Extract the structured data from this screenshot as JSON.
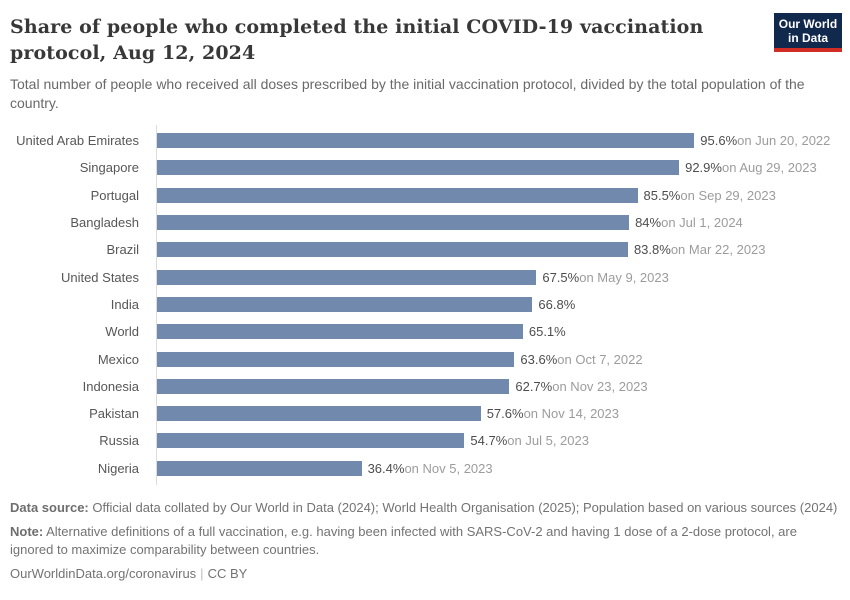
{
  "header": {
    "title": "Share of people who completed the initial COVID-19 vaccination protocol, Aug 12, 2024",
    "subtitle": "Total number of people who received all doses prescribed by the initial vaccination protocol, divided by the total population of the country.",
    "logo": {
      "line1": "Our World",
      "line2": "in Data"
    }
  },
  "chart_data": {
    "type": "bar",
    "orientation": "horizontal",
    "title": "Share of people who completed the initial COVID-19 vaccination protocol, Aug 12, 2024",
    "xlabel": "",
    "ylabel": "",
    "xlim": [
      0,
      100
    ],
    "grid": false,
    "legend": false,
    "bar_color": "#7189ad",
    "categories": [
      "United Arab Emirates",
      "Singapore",
      "Portugal",
      "Bangladesh",
      "Brazil",
      "United States",
      "India",
      "World",
      "Mexico",
      "Indonesia",
      "Pakistan",
      "Russia",
      "Nigeria"
    ],
    "values": [
      95.6,
      92.9,
      85.5,
      84,
      83.8,
      67.5,
      66.8,
      65.1,
      63.6,
      62.7,
      57.6,
      54.7,
      36.4
    ],
    "rows": [
      {
        "label": "United Arab Emirates",
        "value": 95.6,
        "value_label": "95.6%",
        "date_label": "on Jun 20, 2022"
      },
      {
        "label": "Singapore",
        "value": 92.9,
        "value_label": "92.9%",
        "date_label": "on Aug 29, 2023"
      },
      {
        "label": "Portugal",
        "value": 85.5,
        "value_label": "85.5%",
        "date_label": "on Sep 29, 2023"
      },
      {
        "label": "Bangladesh",
        "value": 84,
        "value_label": "84%",
        "date_label": "on Jul 1, 2024"
      },
      {
        "label": "Brazil",
        "value": 83.8,
        "value_label": "83.8%",
        "date_label": "on Mar 22, 2023"
      },
      {
        "label": "United States",
        "value": 67.5,
        "value_label": "67.5%",
        "date_label": "on May 9, 2023"
      },
      {
        "label": "India",
        "value": 66.8,
        "value_label": "66.8%",
        "date_label": ""
      },
      {
        "label": "World",
        "value": 65.1,
        "value_label": "65.1%",
        "date_label": ""
      },
      {
        "label": "Mexico",
        "value": 63.6,
        "value_label": "63.6%",
        "date_label": "on Oct 7, 2022"
      },
      {
        "label": "Indonesia",
        "value": 62.7,
        "value_label": "62.7%",
        "date_label": "on Nov 23, 2023"
      },
      {
        "label": "Pakistan",
        "value": 57.6,
        "value_label": "57.6%",
        "date_label": "on Nov 14, 2023"
      },
      {
        "label": "Russia",
        "value": 54.7,
        "value_label": "54.7%",
        "date_label": "on Jul 5, 2023"
      },
      {
        "label": "Nigeria",
        "value": 36.4,
        "value_label": "36.4%",
        "date_label": "on Nov 5, 2023"
      }
    ]
  },
  "footer": {
    "source_label": "Data source:",
    "source_text": " Official data collated by Our World in Data (2024); World Health Organisation (2025); Population based on various sources (2024)",
    "note_label": "Note:",
    "note_text": " Alternative definitions of a full vaccination, e.g. having been infected with SARS-CoV-2 and having 1 dose of a 2-dose protocol, are ignored to maximize comparability between countries.",
    "url": "OurWorldinData.org/coronavirus",
    "separator": "|",
    "license": "CC BY"
  }
}
